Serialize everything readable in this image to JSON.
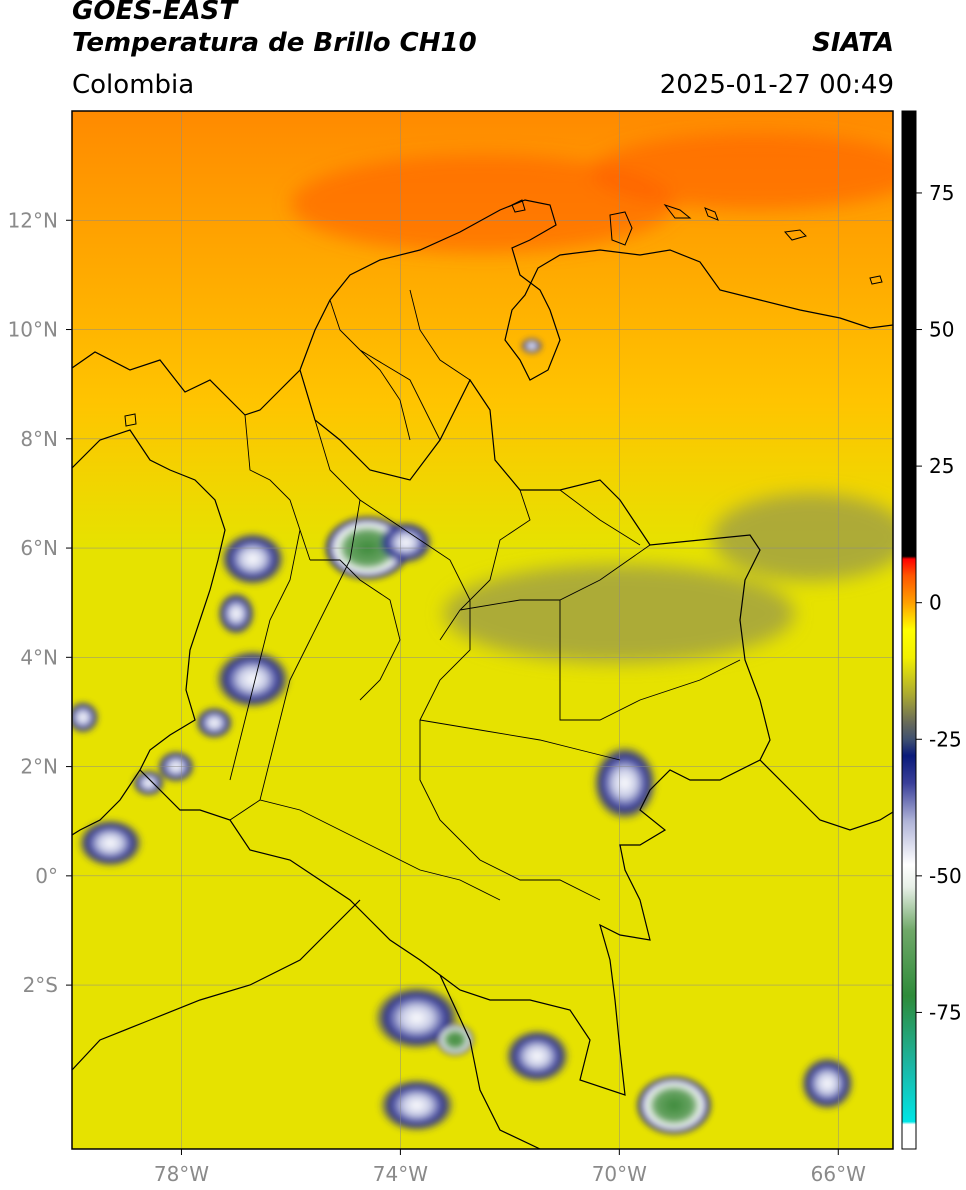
{
  "header": {
    "satellite": "GOES-EAST",
    "product": "Temperatura de Brillo CH10",
    "organization": "SIATA",
    "region": "Colombia",
    "timestamp": "2025-01-27 00:49"
  },
  "map": {
    "lon_range": [
      -80.0,
      -65.0
    ],
    "lat_range": [
      -5.0,
      14.0
    ],
    "lon_ticks": [
      {
        "value": -78,
        "label": "78°W"
      },
      {
        "value": -74,
        "label": "74°W"
      },
      {
        "value": -70,
        "label": "70°W"
      },
      {
        "value": -66,
        "label": "66°W"
      }
    ],
    "lat_ticks": [
      {
        "value": 12,
        "label": "12°N"
      },
      {
        "value": 10,
        "label": "10°N"
      },
      {
        "value": 8,
        "label": "8°N"
      },
      {
        "value": 6,
        "label": "6°N"
      },
      {
        "value": 4,
        "label": "4°N"
      },
      {
        "value": 2,
        "label": "2°N"
      },
      {
        "value": 0,
        "label": "0°"
      },
      {
        "value": -2,
        "label": "2°S"
      }
    ],
    "grid": true,
    "cloud_cells": [
      {
        "lon": -74.6,
        "lat": 6.0,
        "rx": 0.8,
        "ry": 0.6,
        "kind": "deep-core"
      },
      {
        "lon": -73.9,
        "lat": 6.1,
        "rx": 0.5,
        "ry": 0.4,
        "kind": "cold"
      },
      {
        "lon": -76.7,
        "lat": 5.8,
        "rx": 0.6,
        "ry": 0.5,
        "kind": "cold"
      },
      {
        "lon": -77.0,
        "lat": 4.8,
        "rx": 0.35,
        "ry": 0.4,
        "kind": "cold"
      },
      {
        "lon": -76.7,
        "lat": 3.6,
        "rx": 0.7,
        "ry": 0.55,
        "kind": "cold"
      },
      {
        "lon": -77.4,
        "lat": 2.8,
        "rx": 0.35,
        "ry": 0.3,
        "kind": "cold"
      },
      {
        "lon": -78.1,
        "lat": 2.0,
        "rx": 0.35,
        "ry": 0.3,
        "kind": "cold"
      },
      {
        "lon": -78.6,
        "lat": 1.7,
        "rx": 0.3,
        "ry": 0.25,
        "kind": "cold"
      },
      {
        "lon": -79.3,
        "lat": 0.6,
        "rx": 0.6,
        "ry": 0.45,
        "kind": "cold"
      },
      {
        "lon": -79.8,
        "lat": 2.9,
        "rx": 0.3,
        "ry": 0.3,
        "kind": "cold"
      },
      {
        "lon": -69.9,
        "lat": 1.7,
        "rx": 0.6,
        "ry": 0.7,
        "kind": "cold"
      },
      {
        "lon": -73.7,
        "lat": -2.6,
        "rx": 0.8,
        "ry": 0.6,
        "kind": "cold"
      },
      {
        "lon": -73.0,
        "lat": -3.0,
        "rx": 0.35,
        "ry": 0.3,
        "kind": "deep-core"
      },
      {
        "lon": -71.5,
        "lat": -3.3,
        "rx": 0.6,
        "ry": 0.5,
        "kind": "cold"
      },
      {
        "lon": -73.7,
        "lat": -4.2,
        "rx": 0.7,
        "ry": 0.5,
        "kind": "cold"
      },
      {
        "lon": -69.0,
        "lat": -4.2,
        "rx": 0.7,
        "ry": 0.55,
        "kind": "deep-core"
      },
      {
        "lon": -71.6,
        "lat": 9.7,
        "rx": 0.2,
        "ry": 0.15,
        "kind": "cold"
      },
      {
        "lon": -66.2,
        "lat": -3.8,
        "rx": 0.5,
        "ry": 0.5,
        "kind": "cold"
      }
    ],
    "warm_bands": [
      {
        "lon": -72.5,
        "lat": 12.3,
        "rx": 3.5,
        "ry": 0.9
      },
      {
        "lon": -67.5,
        "lat": 12.9,
        "rx": 3.0,
        "ry": 0.7
      }
    ],
    "dry_bands": [
      {
        "lon": -70.0,
        "lat": 4.8,
        "rx": 3.2,
        "ry": 0.9
      },
      {
        "lon": -66.5,
        "lat": 6.2,
        "rx": 1.8,
        "ry": 0.8
      }
    ]
  },
  "colorbar": {
    "min": -100,
    "max": 90,
    "ticks": [
      {
        "value": 75,
        "label": "75"
      },
      {
        "value": 50,
        "label": "50"
      },
      {
        "value": 25,
        "label": "25"
      },
      {
        "value": 0,
        "label": "0"
      },
      {
        "value": -25,
        "label": "-25"
      },
      {
        "value": -50,
        "label": "-50"
      },
      {
        "value": -75,
        "label": "-75"
      }
    ],
    "stops": [
      {
        "value": -100,
        "color": "#ffffff"
      },
      {
        "value": -95.5,
        "color": "#ffffff"
      },
      {
        "value": -95,
        "color": "#00e5e5"
      },
      {
        "value": -85,
        "color": "#1cb7a6"
      },
      {
        "value": -72,
        "color": "#2e8b3a"
      },
      {
        "value": -60,
        "color": "#6fa868"
      },
      {
        "value": -52,
        "color": "#e8f0e8"
      },
      {
        "value": -48,
        "color": "#ffffff"
      },
      {
        "value": -40,
        "color": "#b0b4d8"
      },
      {
        "value": -33,
        "color": "#3a3f99"
      },
      {
        "value": -28,
        "color": "#0a1a7a"
      },
      {
        "value": -25,
        "color": "#3f5070"
      },
      {
        "value": -22,
        "color": "#676a5a"
      },
      {
        "value": -17,
        "color": "#a9a832"
      },
      {
        "value": -10,
        "color": "#f2f000"
      },
      {
        "value": -5,
        "color": "#ffff00"
      },
      {
        "value": 0,
        "color": "#ffa000"
      },
      {
        "value": 5,
        "color": "#ff5500"
      },
      {
        "value": 8,
        "color": "#ff0000"
      },
      {
        "value": 8.5,
        "color": "#000000"
      },
      {
        "value": 90,
        "color": "#000000"
      }
    ]
  },
  "colors": {
    "warm": "#ff8a00",
    "mid": "#ffc400",
    "land": "#e6e200",
    "dry": "#9a9a4a",
    "cold": "#2a2f8f",
    "core": "#4f8f46",
    "gridline": "#8a8a8a",
    "border": "#000000"
  }
}
